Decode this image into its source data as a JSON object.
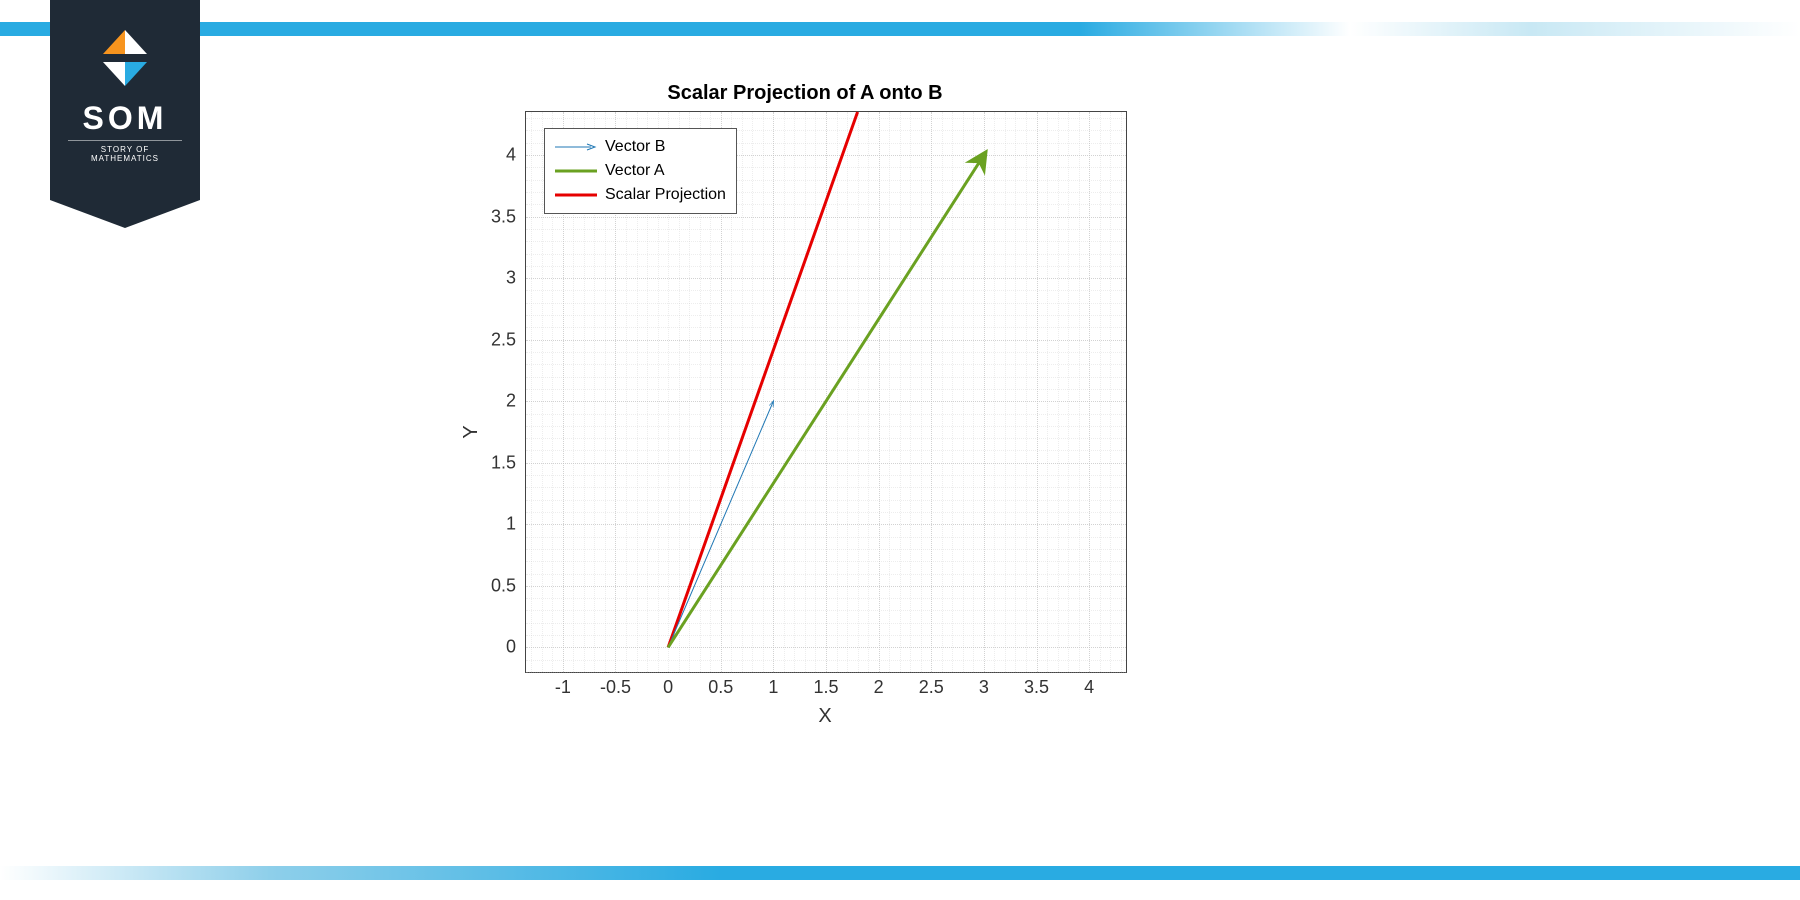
{
  "brand": {
    "name": "SOM",
    "tagline": "STORY OF MATHEMATICS",
    "badge_color": "#1f2a36",
    "accent_color": "#29abe2",
    "mark_colors": {
      "top": "#f7941e",
      "bottom": "#29abe2",
      "side": "#ffffff"
    }
  },
  "chart": {
    "type": "vector-plot",
    "title": "Scalar Projection of A onto B",
    "title_fontsize": 20,
    "xlabel": "X",
    "ylabel": "Y",
    "label_fontsize": 20,
    "tick_fontsize": 18,
    "background_color": "#ffffff",
    "border_color": "#444444",
    "grid_color": "#bfbfbf",
    "grid_style": "dotted",
    "minor_grid": true,
    "xlim": [
      -1.35,
      4.35
    ],
    "ylim": [
      -0.2,
      4.35
    ],
    "xticks": [
      -1,
      -0.5,
      0,
      0.5,
      1,
      1.5,
      2,
      2.5,
      3,
      3.5,
      4
    ],
    "yticks": [
      0,
      0.5,
      1,
      1.5,
      2,
      2.5,
      3,
      3.5,
      4
    ],
    "xtick_step": 0.5,
    "ytick_step": 0.5,
    "grid_minor_step": 0.1,
    "vectors": {
      "B": {
        "start": [
          0,
          0
        ],
        "end": [
          1,
          2
        ],
        "color": "#1f77b4",
        "line_width": 1,
        "arrow": true
      },
      "A": {
        "start": [
          0,
          0
        ],
        "end": [
          3,
          4
        ],
        "color": "#6aa121",
        "line_width": 3,
        "arrow": true
      },
      "Projection": {
        "start": [
          0,
          0
        ],
        "end": [
          1.8,
          4.35
        ],
        "color": "#e60000",
        "line_width": 3,
        "arrow": false
      }
    },
    "legend": {
      "position": "top-left",
      "border_color": "#555555",
      "background": "#ffffff",
      "fontsize": 16,
      "items": [
        {
          "label": "Vector B",
          "color": "#1f77b4",
          "style": "arrow-thin"
        },
        {
          "label": "Vector A",
          "color": "#6aa121",
          "style": "line-thick"
        },
        {
          "label": "Scalar Projection",
          "color": "#e60000",
          "style": "line-thick"
        }
      ]
    }
  }
}
